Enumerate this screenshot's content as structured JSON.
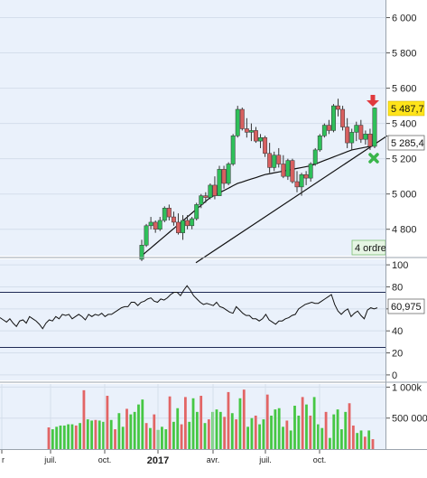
{
  "colors": {
    "panel_bg": "#eaf1fb",
    "grid": "#d4deeb",
    "up": "#2fc05a",
    "down": "#d86060",
    "ma": "#111111",
    "volume_up": "#46c744",
    "volume_down": "#e26565",
    "price_label_bg": "#ffe41a",
    "order_badge_bg": "#e6f5e4",
    "order_badge_border": "#7ebf73",
    "arrow": "#e0393d",
    "cross": "#39b54a"
  },
  "price_axis": {
    "ticks": [
      "4 800",
      "5 000",
      "5 200",
      "5 400",
      "5 600",
      "5 800",
      "6 000"
    ]
  },
  "rsi_axis": {
    "ticks": [
      "0",
      "20",
      "40",
      "60",
      "80",
      "100"
    ]
  },
  "volume_axis": {
    "ticks": [
      "500 000",
      "1 000k"
    ]
  },
  "x_axis": {
    "labels": [
      "r",
      "juil.",
      "oct.",
      "2017",
      "avr.",
      "juil.",
      "oct."
    ]
  },
  "labels": {
    "current_price": "5 487,7",
    "support_price": "5 285,4",
    "rsi_value": "60,975",
    "orders_badge": "4 ordre",
    "sell_arrow": "arrow-down-icon",
    "signal_cross": "cross-icon"
  },
  "chart_data": [
    {
      "type": "candlestick",
      "name": "price",
      "ylim": [
        4650,
        6100
      ],
      "y_ticks": [
        4800,
        5000,
        5200,
        5400,
        5600,
        5800,
        6000
      ],
      "x_tick_labels": [
        "r",
        "juil.",
        "oct.",
        "2017",
        "avr.",
        "juil.",
        "oct."
      ],
      "last_price": 5487.7,
      "support_level": 5285.4,
      "candles": [
        {
          "o": 4630,
          "h": 4740,
          "l": 4620,
          "c": 4710
        },
        {
          "o": 4710,
          "h": 4830,
          "l": 4700,
          "c": 4820
        },
        {
          "o": 4820,
          "h": 4870,
          "l": 4800,
          "c": 4840
        },
        {
          "o": 4840,
          "h": 4850,
          "l": 4780,
          "c": 4800
        },
        {
          "o": 4800,
          "h": 4870,
          "l": 4790,
          "c": 4850
        },
        {
          "o": 4850,
          "h": 4930,
          "l": 4840,
          "c": 4920
        },
        {
          "o": 4920,
          "h": 4940,
          "l": 4850,
          "c": 4870
        },
        {
          "o": 4870,
          "h": 4900,
          "l": 4820,
          "c": 4840
        },
        {
          "o": 4840,
          "h": 4890,
          "l": 4770,
          "c": 4780
        },
        {
          "o": 4780,
          "h": 4880,
          "l": 4740,
          "c": 4850
        },
        {
          "o": 4850,
          "h": 4880,
          "l": 4800,
          "c": 4820
        },
        {
          "o": 4820,
          "h": 4870,
          "l": 4800,
          "c": 4860
        },
        {
          "o": 4860,
          "h": 4950,
          "l": 4850,
          "c": 4940
        },
        {
          "o": 4940,
          "h": 5000,
          "l": 4920,
          "c": 4990
        },
        {
          "o": 4990,
          "h": 5010,
          "l": 4950,
          "c": 4980
        },
        {
          "o": 4980,
          "h": 5060,
          "l": 4970,
          "c": 5050
        },
        {
          "o": 5050,
          "h": 5100,
          "l": 4970,
          "c": 4990
        },
        {
          "o": 4990,
          "h": 5160,
          "l": 4990,
          "c": 5140
        },
        {
          "o": 5140,
          "h": 5160,
          "l": 5030,
          "c": 5060
        },
        {
          "o": 5060,
          "h": 5180,
          "l": 5050,
          "c": 5170
        },
        {
          "o": 5170,
          "h": 5340,
          "l": 5160,
          "c": 5330
        },
        {
          "o": 5330,
          "h": 5500,
          "l": 5320,
          "c": 5480
        },
        {
          "o": 5480,
          "h": 5490,
          "l": 5360,
          "c": 5370
        },
        {
          "o": 5370,
          "h": 5430,
          "l": 5320,
          "c": 5350
        },
        {
          "o": 5350,
          "h": 5400,
          "l": 5300,
          "c": 5360
        },
        {
          "o": 5360,
          "h": 5380,
          "l": 5290,
          "c": 5300
        },
        {
          "o": 5300,
          "h": 5340,
          "l": 5260,
          "c": 5320
        },
        {
          "o": 5320,
          "h": 5330,
          "l": 5210,
          "c": 5230
        },
        {
          "o": 5230,
          "h": 5290,
          "l": 5120,
          "c": 5150
        },
        {
          "o": 5150,
          "h": 5240,
          "l": 5130,
          "c": 5220
        },
        {
          "o": 5220,
          "h": 5260,
          "l": 5150,
          "c": 5170
        },
        {
          "o": 5170,
          "h": 5220,
          "l": 5090,
          "c": 5100
        },
        {
          "o": 5100,
          "h": 5200,
          "l": 5080,
          "c": 5190
        },
        {
          "o": 5190,
          "h": 5200,
          "l": 5060,
          "c": 5070
        },
        {
          "o": 5070,
          "h": 5130,
          "l": 5010,
          "c": 5040
        },
        {
          "o": 5040,
          "h": 5120,
          "l": 4990,
          "c": 5110
        },
        {
          "o": 5110,
          "h": 5130,
          "l": 5050,
          "c": 5090
        },
        {
          "o": 5090,
          "h": 5180,
          "l": 5070,
          "c": 5170
        },
        {
          "o": 5170,
          "h": 5260,
          "l": 5160,
          "c": 5250
        },
        {
          "o": 5250,
          "h": 5340,
          "l": 5240,
          "c": 5330
        },
        {
          "o": 5330,
          "h": 5400,
          "l": 5320,
          "c": 5390
        },
        {
          "o": 5390,
          "h": 5420,
          "l": 5340,
          "c": 5360
        },
        {
          "o": 5360,
          "h": 5510,
          "l": 5350,
          "c": 5500
        },
        {
          "o": 5500,
          "h": 5540,
          "l": 5440,
          "c": 5480
        },
        {
          "o": 5480,
          "h": 5500,
          "l": 5360,
          "c": 5380
        },
        {
          "o": 5380,
          "h": 5430,
          "l": 5260,
          "c": 5290
        },
        {
          "o": 5290,
          "h": 5370,
          "l": 5250,
          "c": 5350
        },
        {
          "o": 5350,
          "h": 5410,
          "l": 5300,
          "c": 5390
        },
        {
          "o": 5390,
          "h": 5420,
          "l": 5290,
          "c": 5310
        },
        {
          "o": 5310,
          "h": 5360,
          "l": 5280,
          "c": 5340
        },
        {
          "o": 5340,
          "h": 5370,
          "l": 5250,
          "c": 5270
        },
        {
          "o": 5270,
          "h": 5490,
          "l": 5260,
          "c": 5487.7
        }
      ],
      "moving_average": [
        4650,
        4672,
        4694,
        4716,
        4738,
        4760,
        4782,
        4804,
        4826,
        4848,
        4870,
        4892,
        4914,
        4936,
        4958,
        4980,
        4993,
        5007,
        5020,
        5033,
        5047,
        5060,
        5068,
        5077,
        5085,
        5093,
        5102,
        5110,
        5115,
        5120,
        5125,
        5130,
        5135,
        5140,
        5145,
        5150,
        5155,
        5160,
        5170,
        5180,
        5190,
        5200,
        5210,
        5220,
        5230,
        5240,
        5250,
        5255,
        5260,
        5265,
        5270,
        5280
      ],
      "trendline": {
        "from_candle": 0,
        "from_value": 4610,
        "to_candle": 51,
        "to_value": 5330
      }
    },
    {
      "type": "line",
      "name": "RSI",
      "ylim": [
        -5,
        105
      ],
      "y_ticks": [
        0,
        20,
        40,
        60,
        80,
        100
      ],
      "levels": [
        25,
        75
      ],
      "last_value": 60.975,
      "values": [
        52,
        50,
        48,
        51,
        47,
        44,
        49,
        50,
        47,
        53,
        51,
        49,
        46,
        42,
        47,
        50,
        49,
        53,
        51,
        55,
        54,
        55,
        51,
        53,
        55,
        53,
        50,
        55,
        53,
        55,
        54,
        56,
        53,
        55,
        55,
        57,
        59,
        61,
        62,
        62,
        66,
        66,
        63,
        66,
        67,
        69,
        70,
        67,
        66,
        69,
        68,
        70,
        73,
        75,
        75,
        72,
        77,
        81,
        77,
        72,
        69,
        66,
        64,
        65,
        64,
        63,
        66,
        62,
        61,
        59,
        57,
        56,
        62,
        59,
        56,
        54,
        54,
        51,
        51,
        49,
        51,
        55,
        50,
        48,
        46,
        49,
        49,
        51,
        52,
        54,
        55,
        60,
        62,
        64,
        65,
        66,
        65,
        65,
        67,
        69,
        71,
        73,
        64,
        58,
        55,
        58,
        60,
        53,
        56,
        58,
        54,
        51,
        59,
        61,
        60,
        61
      ],
      "show_legend": false
    },
    {
      "type": "bar",
      "name": "volume",
      "ylim": [
        0,
        1050000
      ],
      "y_ticks": [
        500000,
        1000000
      ],
      "values": [
        350000,
        320000,
        360000,
        380000,
        380000,
        400000,
        400000,
        380000,
        420000,
        950000,
        480000,
        460000,
        470000,
        460000,
        440000,
        860000,
        470000,
        320000,
        580000,
        360000,
        650000,
        560000,
        600000,
        720000,
        800000,
        420000,
        340000,
        560000,
        310000,
        360000,
        320000,
        850000,
        440000,
        660000,
        400000,
        840000,
        440000,
        820000,
        600000,
        860000,
        420000,
        480000,
        600000,
        640000,
        600000,
        520000,
        920000,
        580000,
        480000,
        820000,
        960000,
        360000,
        500000,
        540000,
        400000,
        480000,
        880000,
        540000,
        640000,
        660000,
        360000,
        460000,
        300000,
        700000,
        540000,
        840000,
        720000,
        540000,
        840000,
        400000,
        340000,
        600000,
        180000,
        560000,
        640000,
        320000,
        600000,
        740000,
        380000,
        260000,
        300000,
        200000,
        300000,
        160000
      ],
      "down": [
        1,
        0,
        0,
        0,
        0,
        0,
        0,
        1,
        0,
        1,
        0,
        0,
        1,
        0,
        0,
        1,
        0,
        1,
        0,
        0,
        1,
        0,
        0,
        0,
        0,
        1,
        0,
        1,
        0,
        0,
        0,
        1,
        0,
        0,
        1,
        1,
        0,
        0,
        0,
        1,
        0,
        1,
        0,
        0,
        0,
        1,
        1,
        0,
        1,
        0,
        1,
        0,
        0,
        1,
        0,
        0,
        1,
        0,
        0,
        0,
        0,
        1,
        0,
        0,
        0,
        1,
        0,
        1,
        0,
        0,
        0,
        1,
        0,
        0,
        0,
        0,
        0,
        1,
        1,
        0,
        0,
        1,
        0,
        1
      ]
    }
  ]
}
